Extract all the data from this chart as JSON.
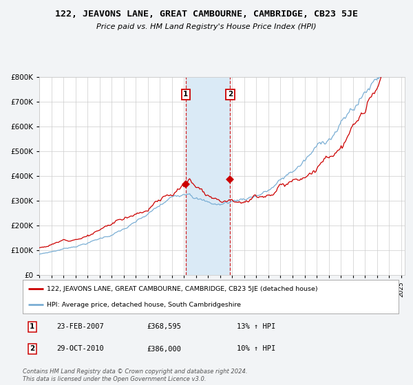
{
  "title": "122, JEAVONS LANE, GREAT CAMBOURNE, CAMBRIDGE, CB23 5JE",
  "subtitle": "Price paid vs. HM Land Registry's House Price Index (HPI)",
  "legend_line1": "122, JEAVONS LANE, GREAT CAMBOURNE, CAMBRIDGE, CB23 5JE (detached house)",
  "legend_line2": "HPI: Average price, detached house, South Cambridgeshire",
  "sale1_date": "23-FEB-2007",
  "sale1_price": "£368,595",
  "sale1_hpi": "13% ↑ HPI",
  "sale2_date": "29-OCT-2010",
  "sale2_price": "£386,000",
  "sale2_hpi": "10% ↑ HPI",
  "footer": "Contains HM Land Registry data © Crown copyright and database right 2024.\nThis data is licensed under the Open Government Licence v3.0.",
  "red_color": "#cc0000",
  "blue_color": "#7aaed4",
  "shade_color": "#daeaf6",
  "bg_color": "#f2f4f6",
  "plot_bg": "#ffffff",
  "grid_color": "#cccccc",
  "sale1_x": 2007.14,
  "sale2_x": 2010.83,
  "sale1_y": 368595,
  "sale2_y": 386000,
  "ylim": [
    0,
    800000
  ],
  "xlim_start": 1995,
  "xlim_end": 2025.3
}
